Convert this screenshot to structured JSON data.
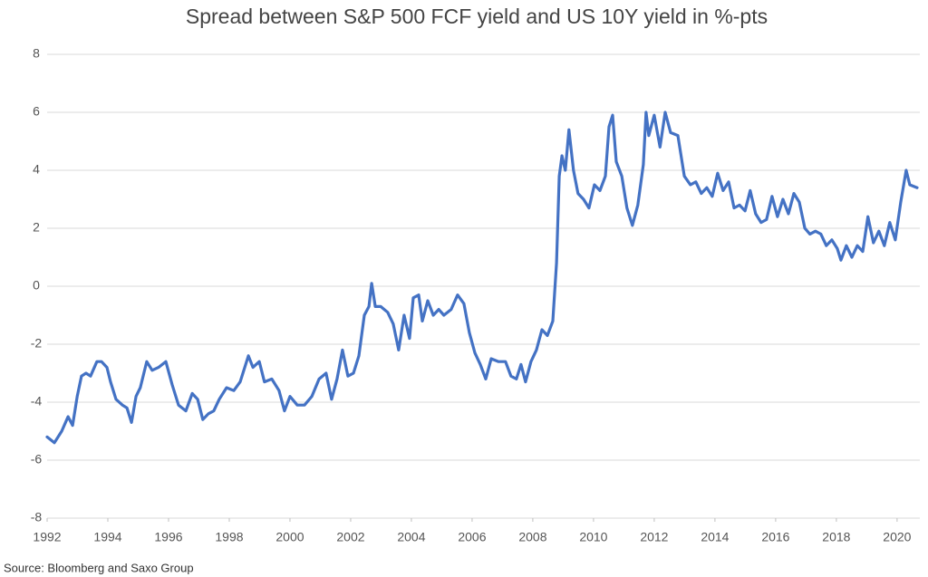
{
  "chart_data": {
    "type": "line",
    "title": "Spread between S&P 500 FCF yield and US 10Y yield in %-pts",
    "source": "Source: Bloomberg and Saxo Group",
    "color": "#4472c4",
    "grid": true,
    "xlim": [
      1992,
      2020.75
    ],
    "xticks": [
      1992,
      1994,
      1996,
      1998,
      2000,
      2002,
      2004,
      2006,
      2008,
      2010,
      2012,
      2014,
      2016,
      2018,
      2020
    ],
    "ylim": [
      -8,
      8
    ],
    "yticks": [
      -8,
      -6,
      -4,
      -2,
      0,
      2,
      4,
      6,
      8
    ],
    "x": [
      1992.0,
      1992.24,
      1992.48,
      1992.69,
      1992.84,
      1992.99,
      1993.13,
      1993.28,
      1993.43,
      1993.64,
      1993.79,
      1993.97,
      1994.09,
      1994.27,
      1994.48,
      1994.63,
      1994.78,
      1994.93,
      1995.07,
      1995.28,
      1995.46,
      1995.67,
      1995.91,
      1996.12,
      1996.33,
      1996.57,
      1996.78,
      1996.96,
      1997.13,
      1997.31,
      1997.49,
      1997.67,
      1997.91,
      1998.15,
      1998.36,
      1998.63,
      1998.78,
      1998.99,
      1999.16,
      1999.4,
      1999.64,
      1999.82,
      2000.0,
      2000.24,
      2000.48,
      2000.72,
      2000.96,
      2001.19,
      2001.37,
      2001.55,
      2001.73,
      2001.91,
      2002.09,
      2002.27,
      2002.45,
      2002.6,
      2002.69,
      2002.81,
      2002.99,
      2003.22,
      2003.4,
      2003.58,
      2003.76,
      2003.94,
      2004.06,
      2004.24,
      2004.36,
      2004.54,
      2004.72,
      2004.9,
      2005.07,
      2005.31,
      2005.52,
      2005.73,
      2005.91,
      2006.09,
      2006.27,
      2006.45,
      2006.63,
      2006.87,
      2007.1,
      2007.28,
      2007.46,
      2007.61,
      2007.76,
      2007.94,
      2008.12,
      2008.3,
      2008.48,
      2008.66,
      2008.78,
      2008.87,
      2008.96,
      2009.07,
      2009.19,
      2009.34,
      2009.49,
      2009.67,
      2009.85,
      2010.03,
      2010.21,
      2010.39,
      2010.51,
      2010.63,
      2010.75,
      2010.93,
      2011.1,
      2011.28,
      2011.46,
      2011.64,
      2011.73,
      2011.82,
      2012.0,
      2012.19,
      2012.36,
      2012.54,
      2012.78,
      2012.99,
      2013.19,
      2013.37,
      2013.55,
      2013.73,
      2013.91,
      2014.09,
      2014.27,
      2014.45,
      2014.63,
      2014.81,
      2014.99,
      2015.16,
      2015.34,
      2015.52,
      2015.7,
      2015.88,
      2016.06,
      2016.24,
      2016.42,
      2016.6,
      2016.78,
      2016.96,
      2017.13,
      2017.31,
      2017.49,
      2017.67,
      2017.85,
      2018.03,
      2018.15,
      2018.33,
      2018.51,
      2018.69,
      2018.87,
      2019.04,
      2019.22,
      2019.4,
      2019.58,
      2019.76,
      2019.94,
      2020.12,
      2020.3,
      2020.42,
      2020.66
    ],
    "values": [
      -5.2,
      -5.4,
      -5.0,
      -4.5,
      -4.8,
      -3.8,
      -3.1,
      -3.0,
      -3.1,
      -2.6,
      -2.6,
      -2.8,
      -3.3,
      -3.9,
      -4.1,
      -4.2,
      -4.7,
      -3.8,
      -3.5,
      -2.6,
      -2.9,
      -2.8,
      -2.6,
      -3.4,
      -4.1,
      -4.3,
      -3.7,
      -3.9,
      -4.6,
      -4.4,
      -4.3,
      -3.9,
      -3.5,
      -3.6,
      -3.3,
      -2.4,
      -2.8,
      -2.6,
      -3.3,
      -3.2,
      -3.6,
      -4.3,
      -3.8,
      -4.1,
      -4.1,
      -3.8,
      -3.2,
      -3.0,
      -3.9,
      -3.2,
      -2.2,
      -3.1,
      -3.0,
      -2.4,
      -1.0,
      -0.7,
      0.1,
      -0.7,
      -0.7,
      -0.9,
      -1.3,
      -2.2,
      -1.0,
      -1.8,
      -0.4,
      -0.3,
      -1.2,
      -0.5,
      -1.0,
      -0.8,
      -1.0,
      -0.8,
      -0.3,
      -0.6,
      -1.6,
      -2.3,
      -2.7,
      -3.2,
      -2.5,
      -2.6,
      -2.6,
      -3.1,
      -3.2,
      -2.7,
      -3.3,
      -2.6,
      -2.2,
      -1.5,
      -1.7,
      -1.2,
      0.8,
      3.8,
      4.5,
      4.0,
      5.4,
      4.0,
      3.2,
      3.0,
      2.7,
      3.5,
      3.3,
      3.8,
      5.5,
      5.9,
      4.3,
      3.8,
      2.7,
      2.1,
      2.8,
      4.2,
      6.0,
      5.2,
      5.9,
      4.8,
      6.0,
      5.3,
      5.2,
      3.8,
      3.5,
      3.6,
      3.2,
      3.4,
      3.1,
      3.9,
      3.3,
      3.6,
      2.7,
      2.8,
      2.6,
      3.3,
      2.5,
      2.2,
      2.3,
      3.1,
      2.4,
      3.0,
      2.5,
      3.2,
      2.9,
      2.0,
      1.8,
      1.9,
      1.8,
      1.4,
      1.6,
      1.3,
      0.9,
      1.4,
      1.0,
      1.4,
      1.2,
      2.4,
      1.5,
      1.9,
      1.4,
      2.2,
      1.6,
      2.9,
      4.0,
      3.5,
      3.4
    ]
  }
}
